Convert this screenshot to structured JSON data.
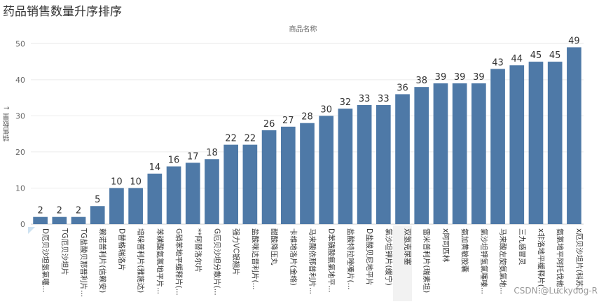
{
  "title": "药品销售数量升序排序",
  "watermark": "CSDN @Luckydog-R",
  "chart_data": {
    "type": "bar",
    "xlabel": "商品名称",
    "ylabel": "销售数量 ↓",
    "ylim": [
      0,
      52
    ],
    "yticks": [
      0,
      10,
      20,
      30,
      40,
      50
    ],
    "grid": true,
    "highlighted_category": "双氢克尿塞",
    "bar_color": "#4e79a7",
    "categories": [
      "D厄贝沙坦氢氯噻...",
      "TG厄贝沙坦片",
      "TG盐酸贝那普利片...",
      "赖诺普利片(信赖安)",
      "D替格瑞洛片",
      "培哚普利片(雅施达)",
      "苯磺酸氨氯地平片...",
      "G硝苯地平缓释片(...",
      "**阿替洛尔片",
      "G厄贝沙坦分散片(...",
      "强力VC银翘片",
      "盐酸咪达普利片(...",
      "醋酸降压丸",
      "卡维地洛片(金络)",
      "马来酸依那普利片...",
      "D苯磺酸氨氯地平...",
      "盐酸特拉唑嗪片(...",
      "D盐酸贝尼地平片",
      "氯沙坦钾片(缓宁)",
      "双氢克尿塞",
      "雷米普利片(瑞素坦)",
      "x阿司匹林",
      "氨加黄敏胶囊",
      "氯沙坦钾氢氯噻嗪...",
      "马来酸左旋氨氯地...",
      "三九感冒灵",
      "x非洛地平缓释片(...",
      "氨氯地平阿托伐他...",
      "x厄贝沙坦片(科苏)"
    ],
    "values": [
      2,
      2,
      2,
      5,
      10,
      10,
      14,
      16,
      17,
      18,
      22,
      22,
      26,
      27,
      28,
      30,
      32,
      33,
      33,
      36,
      38,
      39,
      39,
      39,
      43,
      44,
      45,
      45,
      49
    ]
  }
}
